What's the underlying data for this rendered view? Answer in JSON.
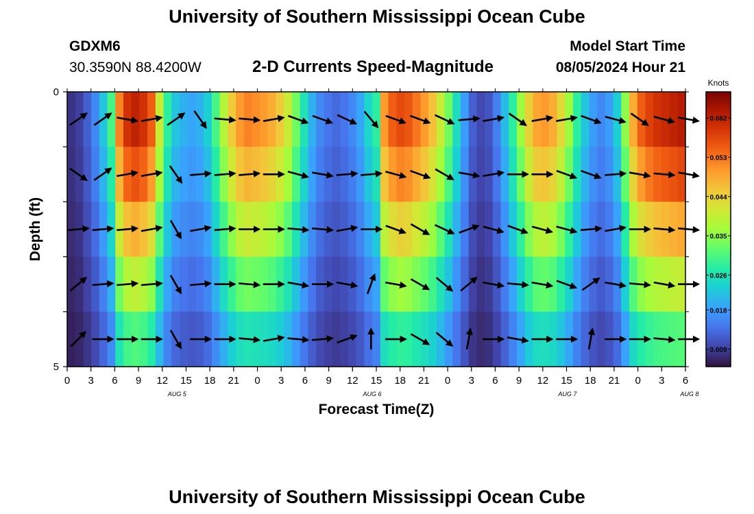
{
  "header": {
    "title": "University of Southern Mississippi Ocean Cube",
    "station": "GDXM6",
    "coords": "30.3590N  88.4200W",
    "plot_title": "2-D Currents Speed-Magnitude",
    "model_start_label": "Model Start Time",
    "model_start_value": "08/05/2024 Hour 21"
  },
  "footer": {
    "title": "University of Southern Mississippi Ocean Cube"
  },
  "colors": {
    "speed_scale": [
      "#30123b",
      "#4145ab",
      "#4675ed",
      "#39a2fc",
      "#1bcfd4",
      "#24eca6",
      "#61fc6c",
      "#a4fc3b",
      "#d1e834",
      "#f3c63a",
      "#fe9b2d",
      "#f36315",
      "#d93806",
      "#b11901",
      "#7a0403"
    ]
  },
  "chart_data": {
    "type": "heatmap",
    "title": "2-D Currents Speed-Magnitude",
    "xlabel": "Forecast Time(Z)",
    "ylabel": "Depth (ft)",
    "y_ticks": [
      "0",
      "5"
    ],
    "ylim": [
      0,
      5
    ],
    "x_ticks": [
      "0",
      "3",
      "6",
      "9",
      "12",
      "15",
      "18",
      "21",
      "0",
      "3",
      "6",
      "9",
      "12",
      "15",
      "18",
      "21",
      "0",
      "3",
      "6",
      "9",
      "12",
      "15",
      "18",
      "21",
      "0",
      "3",
      "6"
    ],
    "date_labels": [
      {
        "label": "AUG 5",
        "hour_index": 13.5
      },
      {
        "label": "AUG 6",
        "hour_index": 37.5
      },
      {
        "label": "AUG 7",
        "hour_index": 61.5
      },
      {
        "label": "AUG 8",
        "hour_index": 76.5
      }
    ],
    "colorbar": {
      "unit": "Knots",
      "min": 0.005,
      "max": 0.068,
      "tick_labels": [
        "0.062",
        "0.053",
        "0.044",
        "0.035",
        "0.026",
        "0.018",
        "0.009"
      ],
      "tick_values": [
        0.062,
        0.053,
        0.044,
        0.035,
        0.026,
        0.018,
        0.009
      ]
    },
    "depth_levels_ft": [
      0.5,
      1.5,
      2.5,
      3.5,
      4.5
    ],
    "speed_profile_knots_by_hour": [
      0.008,
      0.009,
      0.012,
      0.016,
      0.022,
      0.03,
      0.052,
      0.06,
      0.062,
      0.06,
      0.055,
      0.04,
      0.028,
      0.022,
      0.02,
      0.019,
      0.02,
      0.023,
      0.03,
      0.038,
      0.045,
      0.05,
      0.052,
      0.051,
      0.05,
      0.048,
      0.045,
      0.04,
      0.033,
      0.026,
      0.02,
      0.016,
      0.014,
      0.013,
      0.014,
      0.016,
      0.019,
      0.024,
      0.028,
      0.05,
      0.055,
      0.057,
      0.056,
      0.053,
      0.05,
      0.046,
      0.04,
      0.033,
      0.025,
      0.018,
      0.012,
      0.01,
      0.011,
      0.015,
      0.021,
      0.028,
      0.036,
      0.044,
      0.049,
      0.05,
      0.048,
      0.043,
      0.036,
      0.028,
      0.022,
      0.018,
      0.016,
      0.018,
      0.023,
      0.035,
      0.048,
      0.055,
      0.058,
      0.06,
      0.061,
      0.062,
      0.063
    ],
    "depth_attenuation": [
      1.0,
      0.9,
      0.75,
      0.6,
      0.45
    ],
    "arrow_hours": [
      0,
      3,
      6,
      9,
      12,
      15,
      18,
      21,
      24,
      27,
      30,
      33,
      36,
      39,
      42,
      45,
      48,
      51,
      54,
      57,
      60,
      63,
      66,
      69,
      72,
      75
    ],
    "arrow_direction_deg_by_level": [
      [
        35,
        35,
        -10,
        10,
        35,
        -55,
        -5,
        -5,
        10,
        -20,
        -20,
        -25,
        -50,
        -20,
        -20,
        -25,
        5,
        10,
        -35,
        10,
        10,
        -20,
        -15,
        -35,
        -15,
        -10
      ],
      [
        -35,
        35,
        10,
        10,
        -55,
        5,
        5,
        5,
        0,
        -15,
        -10,
        5,
        5,
        -15,
        -20,
        -30,
        -10,
        10,
        0,
        0,
        -20,
        -20,
        5,
        -10,
        -5,
        -10
      ],
      [
        5,
        5,
        5,
        10,
        -60,
        10,
        5,
        0,
        0,
        -5,
        -5,
        10,
        0,
        -20,
        -30,
        -25,
        20,
        -15,
        -20,
        -15,
        -15,
        5,
        10,
        0,
        -5,
        -5
      ],
      [
        40,
        5,
        5,
        5,
        -60,
        5,
        0,
        -5,
        0,
        -10,
        0,
        -10,
        70,
        -10,
        -30,
        -40,
        40,
        -10,
        -5,
        -10,
        -20,
        35,
        -10,
        -5,
        -10,
        0
      ],
      [
        45,
        0,
        0,
        0,
        -60,
        0,
        0,
        -5,
        10,
        -5,
        5,
        20,
        90,
        0,
        -30,
        -40,
        80,
        0,
        -10,
        0,
        0,
        80,
        0,
        0,
        -5,
        0
      ]
    ]
  }
}
